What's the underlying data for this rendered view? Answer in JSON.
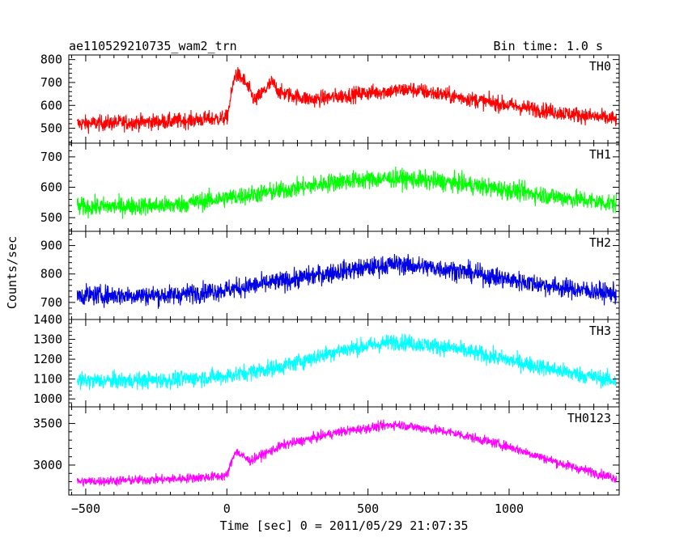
{
  "chart_data": {
    "type": "line",
    "title_left": "ae110529210735_wam2_trn",
    "title_right": "Bin time: 1.0 s",
    "xlabel": "Time [sec] 0 = 2011/05/29 21:07:35",
    "ylabel": "Counts/sec",
    "xlim": [
      -560,
      1390
    ],
    "x_ticks": [
      -500,
      0,
      500,
      1000
    ],
    "x_tick_labels": [
      "−500",
      "0",
      "500",
      "1000"
    ],
    "x_range": [
      -530,
      1380
    ],
    "grid": false,
    "panels": [
      {
        "name": "TH0",
        "color": "#ff0000",
        "ylim": [
          435,
          820
        ],
        "y_ticks": [
          500,
          600,
          700,
          800
        ],
        "y_tick_labels": [
          "500",
          "600",
          "700",
          "800"
        ],
        "trend": [
          [
            -530,
            520
          ],
          [
            -200,
            530
          ],
          [
            0,
            545
          ],
          [
            30,
            740
          ],
          [
            60,
            710
          ],
          [
            100,
            620
          ],
          [
            160,
            700
          ],
          [
            190,
            655
          ],
          [
            300,
            625
          ],
          [
            500,
            655
          ],
          [
            650,
            670
          ],
          [
            800,
            640
          ],
          [
            1000,
            600
          ],
          [
            1200,
            565
          ],
          [
            1380,
            540
          ]
        ],
        "noise": 45
      },
      {
        "name": "TH1",
        "color": "#00ff00",
        "ylim": [
          455,
          745
        ],
        "y_ticks": [
          500,
          600,
          700
        ],
        "y_tick_labels": [
          "500",
          "600",
          "700"
        ],
        "trend": [
          [
            -530,
            535
          ],
          [
            -200,
            540
          ],
          [
            0,
            565
          ],
          [
            200,
            590
          ],
          [
            400,
            620
          ],
          [
            600,
            630
          ],
          [
            800,
            615
          ],
          [
            1000,
            590
          ],
          [
            1200,
            565
          ],
          [
            1380,
            545
          ]
        ],
        "noise": 40
      },
      {
        "name": "TH2",
        "color": "#0000e6",
        "ylim": [
          640,
          950
        ],
        "y_ticks": [
          700,
          800,
          900
        ],
        "y_tick_labels": [
          "700",
          "800",
          "900"
        ],
        "trend": [
          [
            -530,
            725
          ],
          [
            -200,
            725
          ],
          [
            0,
            745
          ],
          [
            200,
            775
          ],
          [
            400,
            810
          ],
          [
            600,
            835
          ],
          [
            800,
            815
          ],
          [
            1000,
            780
          ],
          [
            1200,
            750
          ],
          [
            1380,
            730
          ]
        ],
        "noise": 45
      },
      {
        "name": "TH3",
        "color": "#00ffff",
        "ylim": [
          960,
          1400
        ],
        "y_ticks": [
          1000,
          1100,
          1200,
          1300,
          1400
        ],
        "y_tick_labels": [
          "1000",
          "1100",
          "1200",
          "1300",
          "1400"
        ],
        "trend": [
          [
            -530,
            1090
          ],
          [
            -200,
            1095
          ],
          [
            0,
            1115
          ],
          [
            200,
            1165
          ],
          [
            400,
            1245
          ],
          [
            600,
            1290
          ],
          [
            800,
            1255
          ],
          [
            1000,
            1195
          ],
          [
            1200,
            1135
          ],
          [
            1380,
            1090
          ]
        ],
        "noise": 55
      },
      {
        "name": "TH0123",
        "color": "#ff00ff",
        "ylim": [
          2640,
          3700
        ],
        "y_ticks": [
          3000,
          3500
        ],
        "y_tick_labels": [
          "3000",
          "3500"
        ],
        "trend": [
          [
            -530,
            2800
          ],
          [
            -200,
            2830
          ],
          [
            0,
            2870
          ],
          [
            30,
            3170
          ],
          [
            80,
            3050
          ],
          [
            200,
            3240
          ],
          [
            400,
            3400
          ],
          [
            600,
            3490
          ],
          [
            800,
            3390
          ],
          [
            1000,
            3220
          ],
          [
            1200,
            3000
          ],
          [
            1380,
            2840
          ]
        ],
        "noise": 75
      }
    ]
  }
}
